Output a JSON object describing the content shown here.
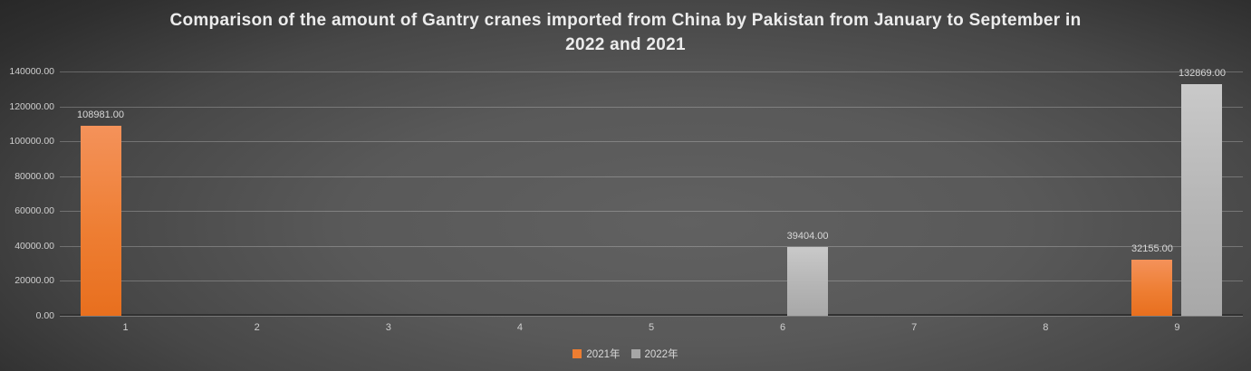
{
  "title_lines": [
    "Comparison of the amount of Gantry cranes imported from China by Pakistan from January to September in",
    "2022 and 2021"
  ],
  "chart_data": {
    "type": "bar",
    "title": "Comparison of the amount of Gantry cranes imported from China by Pakistan from January to September in 2022 and 2021",
    "categories": [
      "1",
      "2",
      "3",
      "4",
      "5",
      "6",
      "7",
      "8",
      "9"
    ],
    "series": [
      {
        "name": "2021年",
        "color": "#ED7D31",
        "values": [
          108981,
          0,
          0,
          0,
          0,
          0,
          0,
          0,
          32155
        ]
      },
      {
        "name": "2022年",
        "color": "#A6A6A6",
        "values": [
          0,
          0,
          0,
          0,
          0,
          39404,
          0,
          0,
          132869
        ]
      }
    ],
    "visible_value_labels": [
      "108981.00",
      "39404.00",
      "32155.00",
      "132869.00"
    ],
    "value_label_decimals": 2,
    "xlabel": "",
    "ylabel": "",
    "ylim": [
      0,
      140000
    ],
    "ytick_step": 20000,
    "ytick_labels": [
      "0.00",
      "20000.00",
      "40000.00",
      "60000.00",
      "80000.00",
      "100000.00",
      "120000.00",
      "140000.00"
    ],
    "grid": true,
    "legend_position": "bottom",
    "background": "dark-radial-gray"
  }
}
